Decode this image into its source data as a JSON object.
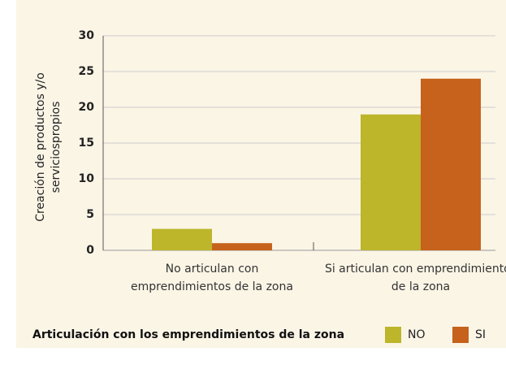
{
  "chart_data": {
    "type": "bar",
    "y_label": "Creación de productos y/o serviciospropios",
    "x_label": "Articulación con los emprendimientos de la zona",
    "categories": [
      "No articulan con emprendimientos de la zona",
      "Si articulan con emprendimientos de la zona"
    ],
    "series": [
      {
        "name": "NO",
        "color": "#bdb52a",
        "values": [
          3,
          19
        ]
      },
      {
        "name": "SI",
        "color": "#c6621b",
        "values": [
          1,
          24
        ]
      }
    ],
    "ylim": [
      0,
      30
    ],
    "yticks": [
      0,
      5,
      10,
      15,
      20,
      25,
      30
    ],
    "grid": true
  }
}
